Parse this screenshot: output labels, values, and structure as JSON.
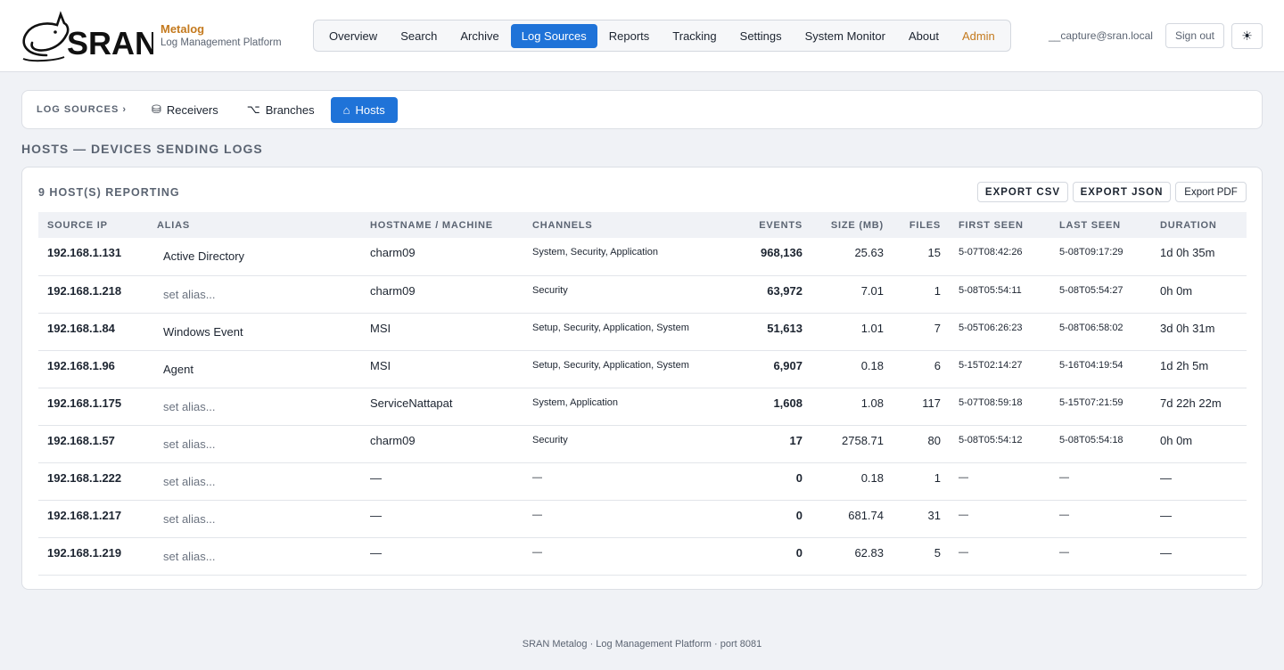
{
  "header": {
    "logo_text": "SRAN",
    "brand_name": "Metalog",
    "brand_subtitle": "Log Management Platform",
    "nav": [
      "Overview",
      "Search",
      "Archive",
      "Log Sources",
      "Reports",
      "Tracking",
      "Settings",
      "System Monitor",
      "About",
      "Admin"
    ],
    "active_nav": "Log Sources",
    "user_email": "__capture@sran.local",
    "signout_label": "Sign out",
    "theme_icon": "☀"
  },
  "subnav": {
    "crumb": "LOG SOURCES ›",
    "tabs": [
      {
        "label": "Receivers",
        "icon": "⛁",
        "icon_name": "database-icon"
      },
      {
        "label": "Branches",
        "icon": "⌥",
        "icon_name": "branch-icon"
      },
      {
        "label": "Hosts",
        "icon": "⌂",
        "icon_name": "home-icon"
      }
    ],
    "active_tab": "Hosts"
  },
  "page_title": "HOSTS — DEVICES SENDING LOGS",
  "card": {
    "count_label": "9 HOST(S) REPORTING",
    "export_csv": "EXPORT CSV",
    "export_json": "EXPORT JSON",
    "export_pdf": "Export PDF"
  },
  "table": {
    "columns": [
      "SOURCE IP",
      "ALIAS",
      "HOSTNAME / MACHINE",
      "CHANNELS",
      "EVENTS",
      "SIZE (MB)",
      "FILES",
      "FIRST SEEN",
      "LAST SEEN",
      "DURATION"
    ],
    "rows": [
      {
        "ip": "192.168.1.131",
        "alias": "Active Directory",
        "alias_set": true,
        "host": "charm09",
        "channels": "System, Security, Application",
        "events": "968,136",
        "size": "25.63",
        "files": "15",
        "first": "5-07T08:42:26",
        "last": "5-08T09:17:29",
        "duration": "1d 0h 35m"
      },
      {
        "ip": "192.168.1.218",
        "alias": "set alias...",
        "alias_set": false,
        "host": "charm09",
        "channels": "Security",
        "events": "63,972",
        "size": "7.01",
        "files": "1",
        "first": "5-08T05:54:11",
        "last": "5-08T05:54:27",
        "duration": "0h 0m"
      },
      {
        "ip": "192.168.1.84",
        "alias": "Windows Event",
        "alias_set": true,
        "host": "MSI",
        "channels": "Setup, Security, Application, System",
        "events": "51,613",
        "size": "1.01",
        "files": "7",
        "first": "5-05T06:26:23",
        "last": "5-08T06:58:02",
        "duration": "3d 0h 31m"
      },
      {
        "ip": "192.168.1.96",
        "alias": "Agent",
        "alias_set": true,
        "host": "MSI",
        "channels": "Setup, Security, Application, System",
        "events": "6,907",
        "size": "0.18",
        "files": "6",
        "first": "5-15T02:14:27",
        "last": "5-16T04:19:54",
        "duration": "1d 2h 5m"
      },
      {
        "ip": "192.168.1.175",
        "alias": "set alias...",
        "alias_set": false,
        "host": "ServiceNattapat",
        "channels": "System, Application",
        "events": "1,608",
        "size": "1.08",
        "files": "117",
        "first": "5-07T08:59:18",
        "last": "5-15T07:21:59",
        "duration": "7d 22h 22m"
      },
      {
        "ip": "192.168.1.57",
        "alias": "set alias...",
        "alias_set": false,
        "host": "charm09",
        "channels": "Security",
        "events": "17",
        "size": "2758.71",
        "files": "80",
        "first": "5-08T05:54:12",
        "last": "5-08T05:54:18",
        "duration": "0h 0m"
      },
      {
        "ip": "192.168.1.222",
        "alias": "set alias...",
        "alias_set": false,
        "host": "—",
        "channels": "—",
        "events": "0",
        "size": "0.18",
        "files": "1",
        "first": "—",
        "last": "—",
        "duration": "—"
      },
      {
        "ip": "192.168.1.217",
        "alias": "set alias...",
        "alias_set": false,
        "host": "—",
        "channels": "—",
        "events": "0",
        "size": "681.74",
        "files": "31",
        "first": "—",
        "last": "—",
        "duration": "—"
      },
      {
        "ip": "192.168.1.219",
        "alias": "set alias...",
        "alias_set": false,
        "host": "—",
        "channels": "—",
        "events": "0",
        "size": "62.83",
        "files": "5",
        "first": "—",
        "last": "—",
        "duration": "—"
      }
    ]
  },
  "footer": "SRAN Metalog · Log Management Platform · port 8081",
  "colors": {
    "accent": "#1f73d8",
    "brand": "#c47a1e",
    "background": "#f0f2f6"
  }
}
